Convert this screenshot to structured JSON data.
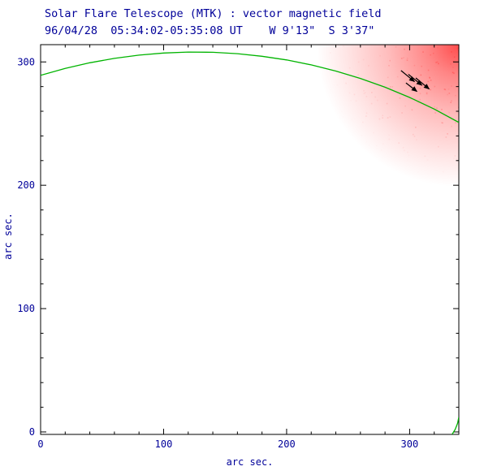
{
  "colors": {
    "background": "#ffffff",
    "text": "#000099",
    "frame": "#000000",
    "limb_green": "#00b400",
    "field_red": "#ff3c3c",
    "arrow_black": "#000000"
  },
  "chart_data": {
    "type": "line",
    "title": "Solar Flare Telescope (MTK) : vector magnetic field",
    "subtitle": "96/04/28  05:34:02-05:35:08 UT    W 9'13\"  S 3'37\"",
    "xlabel": "arc sec.",
    "ylabel": "arc sec.",
    "xlim": [
      0,
      340
    ],
    "ylim": [
      -2,
      314
    ],
    "xticks": [
      0,
      100,
      200,
      300
    ],
    "yticks": [
      0,
      100,
      200,
      300
    ],
    "minor_tick_step": 20,
    "grid": false,
    "legend": "none",
    "series": [
      {
        "name": "solar-limb-curve",
        "type": "line",
        "color": "#00b400",
        "x": [
          0,
          20,
          40,
          60,
          80,
          100,
          120,
          140,
          160,
          180,
          200,
          220,
          240,
          260,
          280,
          300,
          320,
          340
        ],
        "y": [
          289.1,
          294.7,
          299.3,
          302.9,
          305.5,
          307.2,
          308.0,
          307.8,
          306.7,
          304.6,
          301.6,
          297.6,
          292.6,
          286.6,
          279.5,
          271.2,
          261.8,
          250.9
        ]
      },
      {
        "name": "limb-feature-bottom-right",
        "type": "line",
        "color": "#00b400",
        "x": [
          334.5,
          337,
          339,
          340
        ],
        "y": [
          -2,
          2,
          7,
          12
        ]
      }
    ],
    "field_region": {
      "description": "red shaded magnetic-field-strength patch in top-right corner, fading toward lower left",
      "corner_x": 340,
      "corner_y": 314,
      "extent_arcsec": 112,
      "color": "#ff3c3c"
    },
    "arrows": [
      {
        "x1": 293,
        "y1": 293,
        "x2": 304,
        "y2": 284
      },
      {
        "x1": 299,
        "y1": 290,
        "x2": 310,
        "y2": 281
      },
      {
        "x1": 305,
        "y1": 287,
        "x2": 316,
        "y2": 278
      },
      {
        "x1": 297,
        "y1": 283,
        "x2": 306,
        "y2": 276
      }
    ]
  }
}
